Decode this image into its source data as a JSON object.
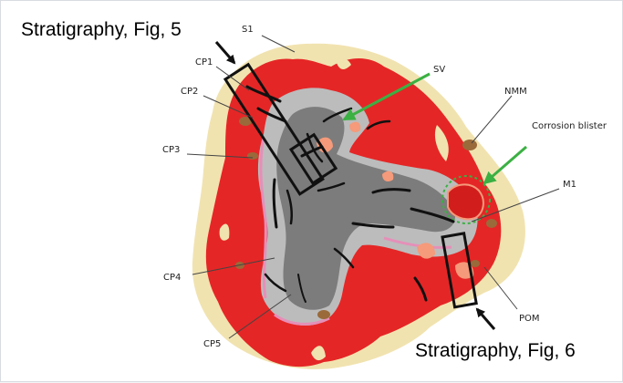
{
  "colors": {
    "sand": "#f1e3b0",
    "red": "#e52626",
    "light_gray": "#bcbcbc",
    "dark_gray": "#7c7c7c",
    "pink": "#e58fb8",
    "salmon": "#f59a7a",
    "brown": "#9a6a3a",
    "crack": "#111111",
    "arrow_green": "#3bb043",
    "leader": "#444444"
  },
  "captions": {
    "fig5": "Stratigraphy, Fig, 5",
    "fig6": "Stratigraphy, Fig, 6"
  },
  "labels": {
    "s1": "S1",
    "cp1": "CP1",
    "cp2": "CP2",
    "cp3": "CP3",
    "cp4": "CP4",
    "cp5": "CP5",
    "sv": "SV",
    "nmm": "NMM",
    "corrosion_blister": "Corrosion blister",
    "m1": "M1",
    "pom": "POM"
  }
}
